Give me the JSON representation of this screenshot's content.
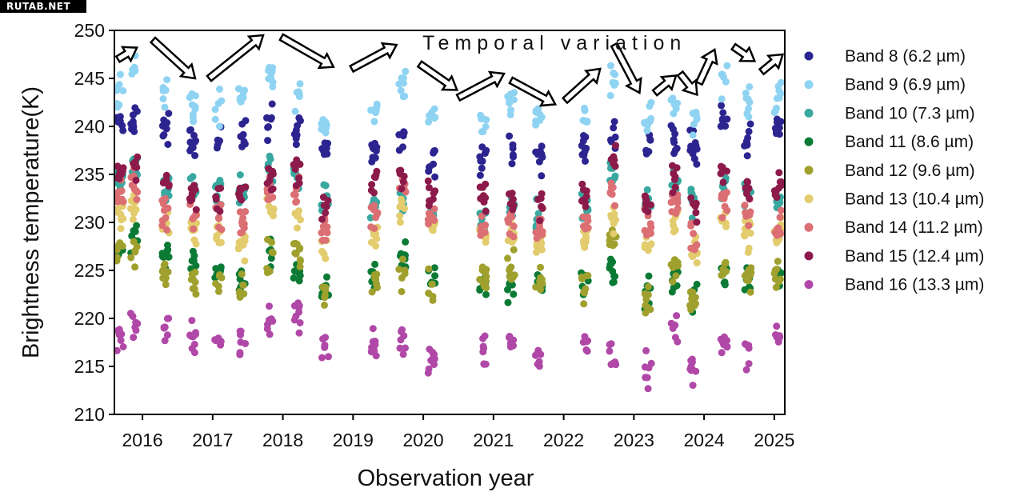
{
  "watermark": "RUTAB.NET",
  "chart_data": {
    "type": "scatter",
    "title": "",
    "xlabel": "Observation year",
    "ylabel": "Brightness temperature(K)",
    "xlim": [
      2015.6,
      2025.15
    ],
    "ylim": [
      210,
      250
    ],
    "x_ticks": [
      2016,
      2017,
      2018,
      2019,
      2020,
      2021,
      2022,
      2023,
      2024,
      2025
    ],
    "y_ticks": [
      210,
      215,
      220,
      225,
      230,
      235,
      240,
      245,
      250
    ],
    "grid": false,
    "legend_position": "right",
    "annotation": "Temporal variation",
    "observation_epochs": [
      2015.68,
      2015.88,
      2016.33,
      2016.72,
      2017.08,
      2017.42,
      2017.82,
      2018.2,
      2018.6,
      2019.3,
      2019.7,
      2020.12,
      2020.85,
      2021.25,
      2021.65,
      2022.3,
      2022.7,
      2023.2,
      2023.58,
      2023.85,
      2024.28,
      2024.62,
      2025.05
    ],
    "trend_arrows": [
      {
        "from": [
          2015.65,
          247
        ],
        "to": [
          2015.92,
          248.2
        ]
      },
      {
        "from": [
          2016.15,
          249
        ],
        "to": [
          2016.75,
          245
        ]
      },
      {
        "from": [
          2016.95,
          245
        ],
        "to": [
          2017.72,
          249.5
        ]
      },
      {
        "from": [
          2017.98,
          249.3
        ],
        "to": [
          2018.72,
          246.2
        ]
      },
      {
        "from": [
          2018.98,
          246
        ],
        "to": [
          2019.62,
          248.5
        ]
      },
      {
        "from": [
          2019.95,
          246.5
        ],
        "to": [
          2020.48,
          243.8
        ]
      },
      {
        "from": [
          2020.5,
          243
        ],
        "to": [
          2021.15,
          245.5
        ]
      },
      {
        "from": [
          2021.25,
          244.8
        ],
        "to": [
          2021.88,
          242.3
        ]
      },
      {
        "from": [
          2022.02,
          242.7
        ],
        "to": [
          2022.52,
          246
        ]
      },
      {
        "from": [
          2022.72,
          248.5
        ],
        "to": [
          2023.08,
          243.5
        ]
      },
      {
        "from": [
          2023.3,
          243.5
        ],
        "to": [
          2023.6,
          245.3
        ]
      },
      {
        "from": [
          2023.66,
          245.5
        ],
        "to": [
          2023.9,
          243.3
        ]
      },
      {
        "from": [
          2023.93,
          244.5
        ],
        "to": [
          2024.15,
          248
        ]
      },
      {
        "from": [
          2024.42,
          248.3
        ],
        "to": [
          2024.72,
          246.8
        ]
      },
      {
        "from": [
          2024.82,
          245.7
        ],
        "to": [
          2025.12,
          247.5
        ]
      }
    ],
    "series": [
      {
        "name": "Band 8 (6.2 µm)",
        "color": "#2c2590",
        "values": [
          240,
          240.5,
          239.5,
          238.5,
          238,
          239,
          240.5,
          240,
          237,
          237.5,
          238.5,
          236.5,
          236.5,
          237.5,
          236.5,
          238,
          239,
          237.5,
          238.5,
          238,
          240.5,
          239,
          239.5
        ]
      },
      {
        "name": "Band 9 (6.9 µm)",
        "color": "#8fd3f2",
        "values": [
          243.5,
          246.5,
          243.5,
          242,
          242,
          243.5,
          245.5,
          243,
          240,
          241.5,
          244.5,
          240.5,
          240.5,
          242.5,
          240.5,
          241,
          244.5,
          241,
          242.5,
          240.5,
          244.5,
          243,
          243
        ]
      },
      {
        "name": "Band 10 (7.3 µm)",
        "color": "#38a8a0",
        "values": [
          235,
          236,
          233.5,
          233.5,
          233,
          233,
          235,
          235,
          232.5,
          232,
          232,
          230.5,
          230.5,
          231,
          231,
          232,
          235.5,
          232,
          234,
          232.5,
          234,
          233,
          232.5
        ]
      },
      {
        "name": "Band 11 (8.6 µm)",
        "color": "#0b7a35",
        "values": [
          227,
          228,
          226,
          225.5,
          224.5,
          224,
          227,
          225.5,
          223.5,
          224,
          226.5,
          224,
          224,
          223.5,
          224,
          224,
          225,
          222.5,
          224,
          222.5,
          224.5,
          224,
          224.5
        ]
      },
      {
        "name": "Band 12 (9.6 µm)",
        "color": "#a0a02e",
        "values": [
          227.5,
          227,
          224.5,
          224,
          224,
          223.5,
          226.5,
          226.5,
          223,
          223.5,
          224.5,
          223.5,
          224,
          225,
          224,
          223.5,
          228,
          222,
          225,
          222,
          225,
          224.5,
          224.5
        ]
      },
      {
        "name": "Band 13 (10.4 µm)",
        "color": "#e2cc6e",
        "values": [
          230.5,
          232,
          229.5,
          229.5,
          228.5,
          228,
          231.5,
          231,
          228,
          229,
          231.5,
          229,
          228.5,
          228.5,
          228,
          228.5,
          230.5,
          228,
          230,
          227,
          230,
          229,
          229
        ]
      },
      {
        "name": "Band 14 (11.2 µm)",
        "color": "#db6f74",
        "values": [
          233,
          234,
          231,
          231,
          230.5,
          230,
          233.5,
          233,
          229.5,
          230.5,
          233.5,
          230.5,
          230,
          230,
          229.5,
          230,
          233,
          229.5,
          232,
          228,
          232,
          230.5,
          229.5
        ]
      },
      {
        "name": "Band 15 (12.4 µm)",
        "color": "#8c1a4a",
        "values": [
          235,
          236,
          234,
          233,
          232.5,
          233,
          235,
          235.5,
          231.5,
          234,
          235,
          233,
          232.5,
          232.5,
          232,
          233,
          236.5,
          232,
          234.5,
          231,
          235,
          233.5,
          234
        ]
      },
      {
        "name": "Band 16 (13.3 µm)",
        "color": "#b048a8",
        "values": [
          218,
          219.5,
          219,
          218,
          217.5,
          217.5,
          220,
          220.5,
          217.5,
          217.5,
          218,
          215.5,
          216.5,
          217.5,
          215.5,
          217,
          216,
          214.5,
          219,
          215,
          217.5,
          216.5,
          218.5
        ]
      }
    ]
  }
}
